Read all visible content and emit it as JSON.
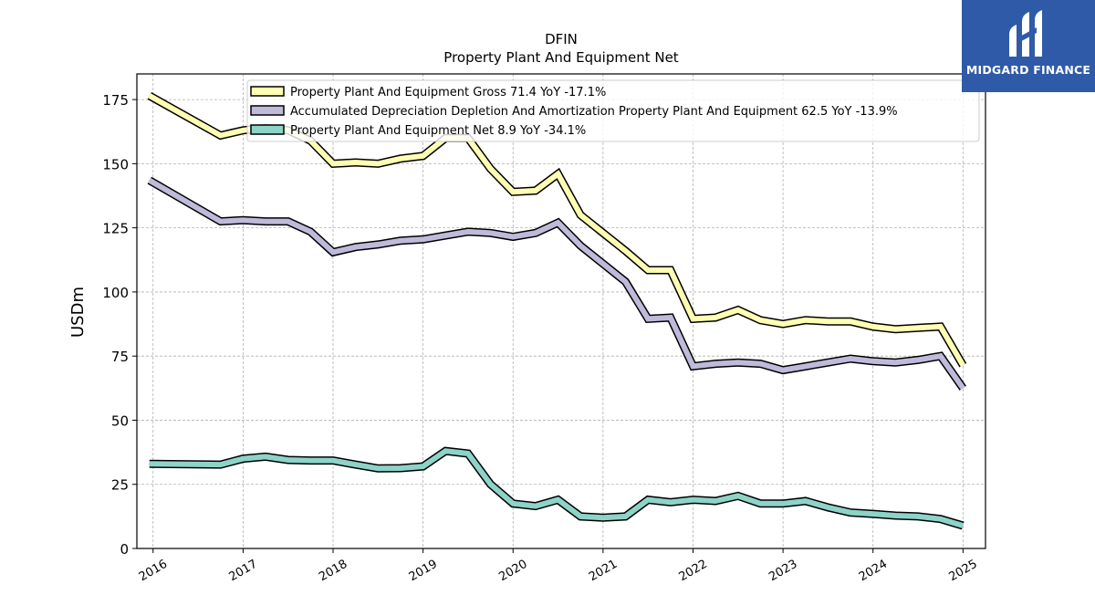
{
  "chart_data": {
    "type": "line",
    "title": "DFIN",
    "subtitle": "Property Plant And Equipment Net",
    "ylabel": "USDm",
    "xlabel": "",
    "ylim": [
      0,
      185
    ],
    "xlim": [
      2015.82,
      2025.25
    ],
    "yticks": [
      0,
      25,
      50,
      75,
      100,
      125,
      150,
      175
    ],
    "xticks": [
      2016,
      2017,
      2018,
      2019,
      2020,
      2021,
      2022,
      2023,
      2024,
      2025
    ],
    "grid": true,
    "legend_position": "upper center",
    "x": [
      2015.96,
      2016.75,
      2017.0,
      2017.25,
      2017.5,
      2017.75,
      2018.0,
      2018.25,
      2018.5,
      2018.75,
      2019.0,
      2019.25,
      2019.5,
      2019.75,
      2020.0,
      2020.25,
      2020.5,
      2020.75,
      2021.0,
      2021.25,
      2021.5,
      2021.75,
      2022.0,
      2022.25,
      2022.5,
      2022.75,
      2023.0,
      2023.25,
      2023.5,
      2023.75,
      2024.0,
      2024.25,
      2024.5,
      2024.75,
      2025.0
    ],
    "series": [
      {
        "name": "Property Plant And Equipment Gross",
        "legend": "Property Plant And Equipment Gross  71.4 YoY -17.1%",
        "color": "#ffffb3",
        "values": [
          176.5,
          161,
          163,
          164,
          163,
          159,
          150,
          150.5,
          150,
          152,
          153,
          160,
          160,
          148,
          139,
          139.5,
          146,
          130,
          123,
          116,
          108.5,
          108.5,
          89.5,
          90,
          93,
          89,
          87.5,
          89,
          88.5,
          88.5,
          86.5,
          85.5,
          86,
          86.5,
          71.4
        ]
      },
      {
        "name": "Accumulated Depreciation Depletion And Amortization Property Plant And Equipment",
        "legend": "Accumulated Depreciation Depletion And Amortization Property Plant And Equipment  62.5 YoY -13.9%",
        "color": "#bebada",
        "values": [
          143.5,
          127.5,
          128,
          127.5,
          127.5,
          123.5,
          115.5,
          117.5,
          118.5,
          120,
          120.5,
          122,
          123.5,
          123,
          121.5,
          123,
          127,
          118,
          111,
          104,
          89.5,
          90,
          71,
          72,
          72.5,
          72,
          69.5,
          71,
          72.5,
          74,
          73,
          72.5,
          73.5,
          75,
          62.5
        ]
      },
      {
        "name": "Property Plant And Equipment Net",
        "legend": "Property Plant And Equipment Net  8.9 YoY -34.1%",
        "color": "#8dd3c7",
        "values": [
          33,
          32.7,
          35,
          35.8,
          34.5,
          34.3,
          34.3,
          32.7,
          31.2,
          31.3,
          32,
          38,
          37,
          25,
          17.5,
          16.5,
          19,
          12.5,
          12,
          12.5,
          19,
          18,
          19,
          18.5,
          20.5,
          17.5,
          17.5,
          18.5,
          16,
          14,
          13.5,
          12.8,
          12.5,
          11.5,
          8.9
        ]
      }
    ]
  },
  "logo": {
    "name": "MIDGARD FINANCE"
  }
}
